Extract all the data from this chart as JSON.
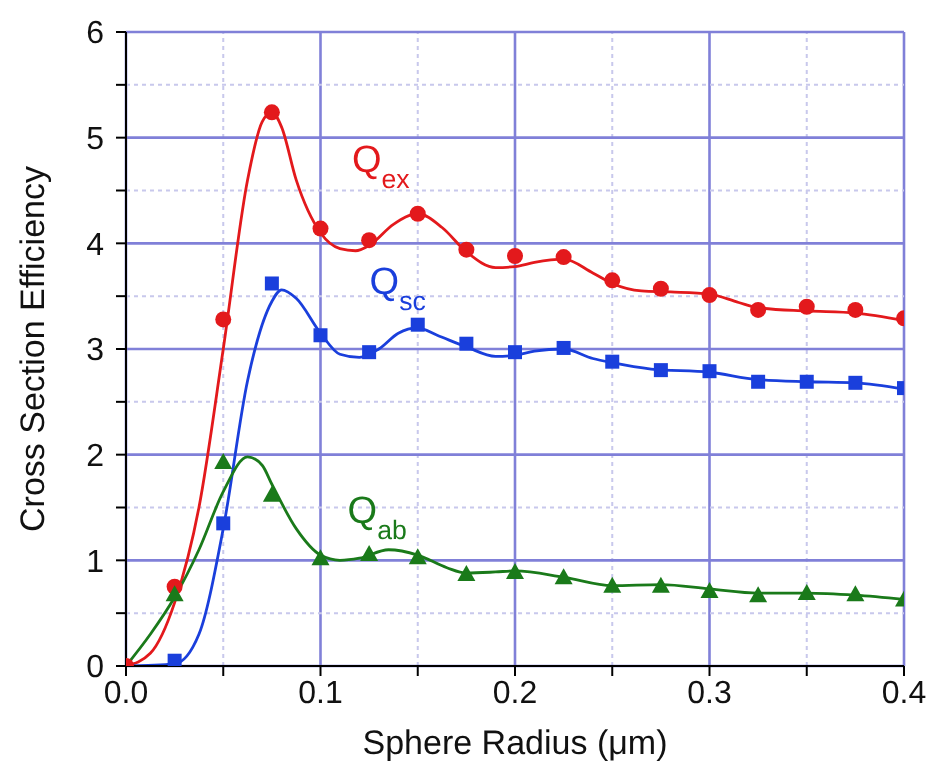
{
  "chart_data": {
    "type": "line",
    "xlabel": "Sphere Radius  (μm)",
    "ylabel": "Cross Section Efficiency",
    "xlim": [
      0,
      0.4
    ],
    "ylim": [
      0,
      6
    ],
    "xticks": [
      {
        "value": 0,
        "label": "0.0"
      },
      {
        "value": 0.05,
        "label": null
      },
      {
        "value": 0.1,
        "label": "0.1"
      },
      {
        "value": 0.15,
        "label": null
      },
      {
        "value": 0.2,
        "label": "0.2"
      },
      {
        "value": 0.25,
        "label": null
      },
      {
        "value": 0.3,
        "label": "0.3"
      },
      {
        "value": 0.35,
        "label": null
      },
      {
        "value": 0.4,
        "label": "0.4"
      }
    ],
    "yticks": [
      0,
      {
        "value": 0.5,
        "label": null
      },
      1,
      {
        "value": 1.5,
        "label": null
      },
      2,
      {
        "value": 2.5,
        "label": null
      },
      3,
      {
        "value": 3.5,
        "label": null
      },
      4,
      {
        "value": 4.5,
        "label": null
      },
      5,
      {
        "value": 5.5,
        "label": null
      },
      6
    ],
    "grid": true,
    "series": [
      {
        "name": "Q$_{ex}$",
        "type": "line",
        "color": "#e3191c",
        "x": [
          0,
          0.0125,
          0.025,
          0.0375,
          0.05,
          0.0625,
          0.07,
          0.075,
          0.08,
          0.0875,
          0.1,
          0.11,
          0.118,
          0.125,
          0.1375,
          0.15,
          0.1625,
          0.175,
          0.19,
          0.2,
          0.21,
          0.225,
          0.24,
          0.25,
          0.265,
          0.28,
          0.3,
          0.315,
          0.325,
          0.35,
          0.375,
          0.4
        ],
        "values": [
          0,
          0.12,
          0.6,
          1.5,
          3.0,
          4.6,
          5.15,
          5.24,
          5.1,
          4.6,
          4.1,
          3.95,
          3.93,
          3.98,
          4.18,
          4.28,
          4.15,
          3.92,
          3.77,
          3.78,
          3.82,
          3.85,
          3.72,
          3.62,
          3.55,
          3.54,
          3.52,
          3.44,
          3.39,
          3.36,
          3.34,
          3.27
        ]
      },
      {
        "type": "scatter",
        "marker": "circle",
        "color": "#e3191c",
        "x": [
          0,
          0.025,
          0.05,
          0.075,
          0.1,
          0.125,
          0.15,
          0.175,
          0.2,
          0.225,
          0.25,
          0.275,
          0.3,
          0.325,
          0.35,
          0.375,
          0.4
        ],
        "values": [
          0,
          0.75,
          3.28,
          5.24,
          4.14,
          4.03,
          4.28,
          3.94,
          3.88,
          3.87,
          3.65,
          3.57,
          3.51,
          3.37,
          3.4,
          3.37,
          3.29
        ]
      },
      {
        "name": "Q$_{sc}$",
        "type": "line",
        "color": "#1a3fdc",
        "x": [
          0,
          0.025,
          0.0375,
          0.05,
          0.0625,
          0.075,
          0.08,
          0.0875,
          0.1,
          0.11,
          0.12,
          0.13,
          0.14,
          0.15,
          0.16,
          0.175,
          0.19,
          0.2,
          0.21,
          0.225,
          0.24,
          0.25,
          0.27,
          0.3,
          0.325,
          0.35,
          0.375,
          0.4
        ],
        "values": [
          0,
          0.02,
          0.3,
          1.3,
          2.7,
          3.45,
          3.56,
          3.48,
          3.15,
          2.95,
          2.92,
          3.0,
          3.15,
          3.2,
          3.13,
          3.02,
          2.93,
          2.94,
          2.98,
          3.0,
          2.91,
          2.87,
          2.81,
          2.78,
          2.71,
          2.69,
          2.68,
          2.62
        ]
      },
      {
        "type": "scatter",
        "marker": "square",
        "color": "#1a3fdc",
        "x": [
          0.025,
          0.05,
          0.075,
          0.1,
          0.125,
          0.15,
          0.175,
          0.2,
          0.225,
          0.25,
          0.275,
          0.3,
          0.325,
          0.35,
          0.375,
          0.4
        ],
        "values": [
          0.05,
          1.35,
          3.62,
          3.13,
          2.97,
          3.23,
          3.05,
          2.97,
          3.01,
          2.88,
          2.8,
          2.79,
          2.69,
          2.69,
          2.68,
          2.63
        ]
      },
      {
        "name": "Q$_{ab}$",
        "type": "line",
        "color": "#1a7a1a",
        "x": [
          0,
          0.0125,
          0.025,
          0.0375,
          0.05,
          0.0625,
          0.07,
          0.075,
          0.0875,
          0.1,
          0.11,
          0.12,
          0.135,
          0.15,
          0.165,
          0.175,
          0.19,
          0.2,
          0.225,
          0.25,
          0.275,
          0.3,
          0.325,
          0.35,
          0.375,
          0.4
        ],
        "values": [
          0,
          0.3,
          0.65,
          1.1,
          1.65,
          1.98,
          1.9,
          1.72,
          1.3,
          1.05,
          1.0,
          1.02,
          1.1,
          1.05,
          0.93,
          0.88,
          0.89,
          0.9,
          0.84,
          0.76,
          0.77,
          0.73,
          0.69,
          0.69,
          0.67,
          0.63
        ]
      },
      {
        "type": "scatter",
        "marker": "triangle",
        "color": "#1a7a1a",
        "x": [
          0.025,
          0.05,
          0.075,
          0.1,
          0.125,
          0.15,
          0.175,
          0.2,
          0.225,
          0.25,
          0.275,
          0.3,
          0.325,
          0.35,
          0.375,
          0.4
        ],
        "values": [
          0.68,
          1.93,
          1.62,
          1.02,
          1.06,
          1.03,
          0.87,
          0.89,
          0.84,
          0.76,
          0.76,
          0.71,
          0.67,
          0.69,
          0.68,
          0.63
        ]
      }
    ]
  }
}
